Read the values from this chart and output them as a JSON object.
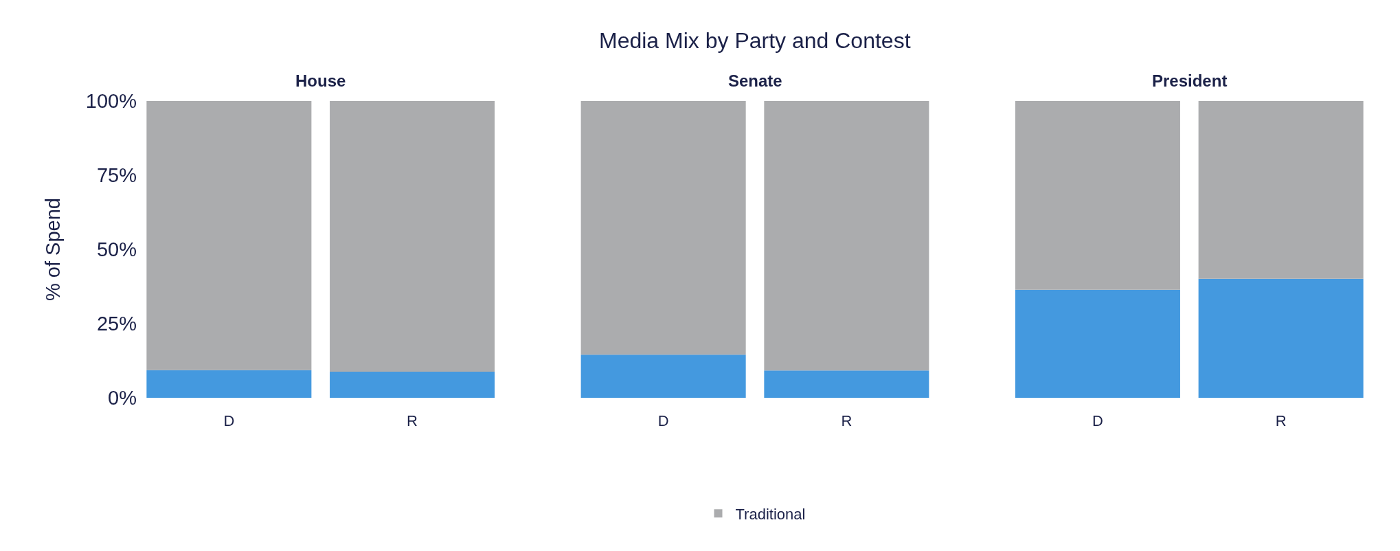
{
  "chart_data": [
    {
      "type": "bar",
      "title": "House",
      "annotations": [
        "Media Mix by Party and Contest"
      ],
      "ylabel": "% of Spend",
      "categories": [
        "D",
        "R"
      ],
      "stacked": true,
      "legend": "bottom",
      "ylim": [
        0,
        100
      ],
      "yticks": [
        {
          "value": 0,
          "label": "0%"
        },
        {
          "value": 25,
          "label": "25%"
        },
        {
          "value": 50,
          "label": "50%"
        },
        {
          "value": 75,
          "label": "75%"
        },
        {
          "value": 100,
          "label": "100%"
        }
      ],
      "series": [
        {
          "color": "#4499df",
          "values": [
            9.3,
            8.8
          ]
        },
        {
          "name": "Traditional",
          "color": "#abacae",
          "values": [
            90.7,
            91.2
          ]
        }
      ]
    },
    {
      "type": "bar",
      "title": "Senate",
      "categories": [
        "D",
        "R"
      ],
      "stacked": true,
      "tick_labels": "x",
      "ylim": [
        0,
        100
      ],
      "series": [
        {
          "color": "#4499df",
          "values": [
            14.5,
            9.2
          ]
        },
        {
          "color": "#abacae",
          "values": [
            85.5,
            90.8
          ]
        }
      ]
    },
    {
      "type": "bar",
      "title": "President",
      "categories": [
        "D",
        "R"
      ],
      "stacked": true,
      "tick_labels": "x",
      "ylim": [
        0,
        100
      ],
      "series": [
        {
          "color": "#4499df",
          "values": [
            36.4,
            40.1
          ]
        },
        {
          "color": "#abacae",
          "values": [
            63.6,
            59.9
          ]
        }
      ]
    }
  ]
}
